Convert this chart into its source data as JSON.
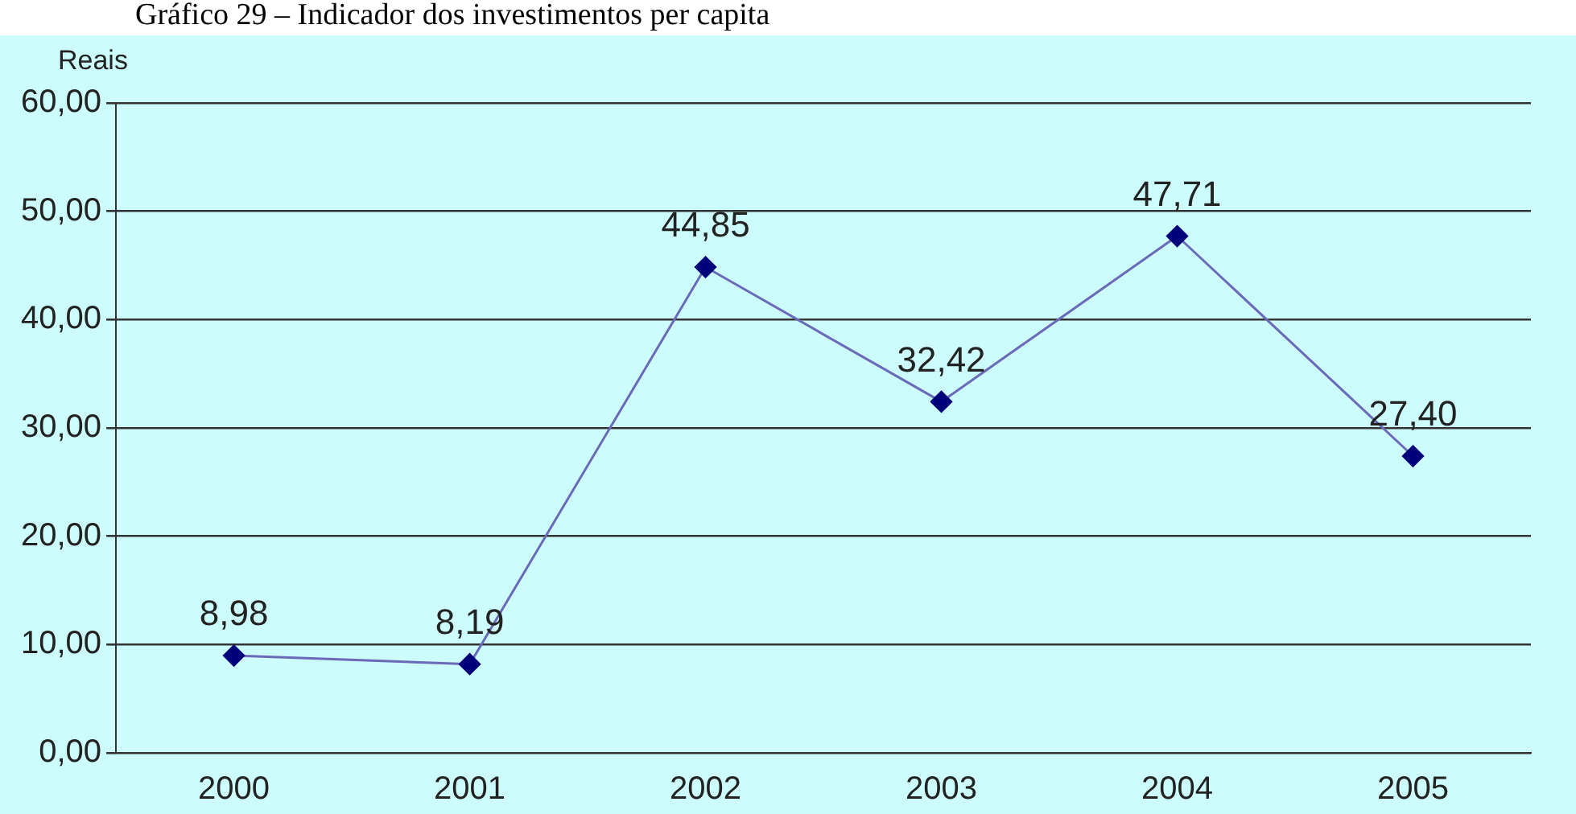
{
  "chart_data": {
    "type": "line",
    "title": "Gráfico 29 – Indicador dos investimentos per capita",
    "ylabel": "Reais",
    "categories": [
      "2000",
      "2001",
      "2002",
      "2003",
      "2004",
      "2005"
    ],
    "series": [
      {
        "color": "#6a6ab8",
        "values": [
          8.98,
          8.19,
          44.85,
          32.42,
          47.71,
          27.4
        ],
        "value_labels": [
          "8,98",
          "8,19",
          "44,85",
          "32,42",
          "47,71",
          "27,40"
        ]
      }
    ],
    "ylim": [
      0,
      60
    ],
    "yticks": [
      {
        "value": 0,
        "label": "0,00"
      },
      {
        "value": 10,
        "label": "10,00"
      },
      {
        "value": 20,
        "label": "20,00"
      },
      {
        "value": 30,
        "label": "30,00"
      },
      {
        "value": 40,
        "label": "40,00"
      },
      {
        "value": 50,
        "label": "50,00"
      },
      {
        "value": 60,
        "label": "60,00"
      }
    ],
    "grid": "y",
    "marker": "diamond",
    "legend": false
  }
}
